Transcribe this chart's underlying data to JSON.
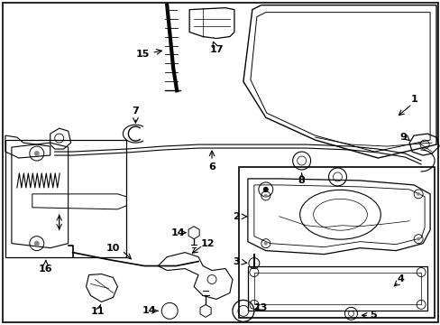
{
  "background_color": "#ffffff",
  "line_color": "#000000",
  "text_color": "#000000",
  "fig_width": 4.89,
  "fig_height": 3.6,
  "dpi": 100
}
